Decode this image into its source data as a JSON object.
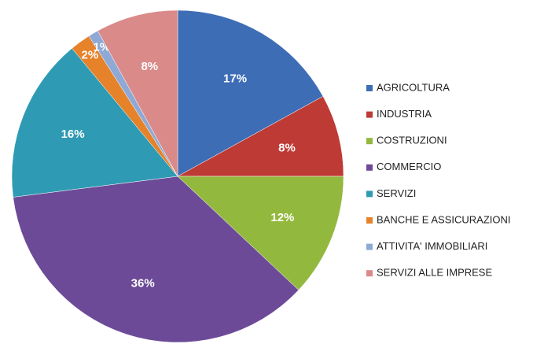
{
  "chart_data": {
    "type": "pie",
    "categories": [
      "AGRICOLTURA",
      "INDUSTRIA",
      "COSTRUZIONI",
      "COMMERCIO",
      "SERVIZI",
      "BANCHE E ASSICURAZIONI",
      "ATTIVITA' IMMOBILIARI",
      "SERVIZI ALLE IMPRESE"
    ],
    "values": [
      17,
      8,
      12,
      36,
      16,
      2,
      1,
      8
    ],
    "value_labels": [
      "17%",
      "8%",
      "12%",
      "36%",
      "16%",
      "2%",
      "1%",
      "8%"
    ],
    "colors": [
      "#3d6db5",
      "#be3a35",
      "#93b83e",
      "#6c4a97",
      "#2f9ab3",
      "#e5822a",
      "#8fa9d6",
      "#d98a89"
    ],
    "legend": "right"
  }
}
